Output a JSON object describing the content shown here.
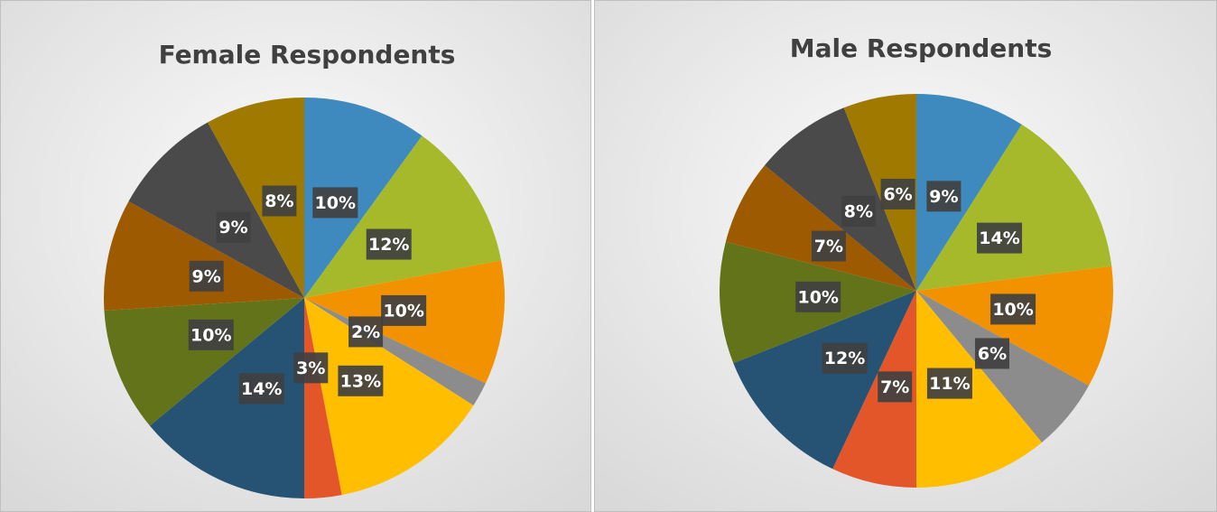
{
  "chart_data": [
    {
      "type": "pie",
      "title": "Female Respondents",
      "values": [
        10,
        12,
        10,
        2,
        13,
        3,
        14,
        10,
        9,
        9,
        8
      ],
      "value_labels": [
        "10%",
        "12%",
        "10%",
        "2%",
        "13%",
        "3%",
        "14%",
        "10%",
        "9%",
        "9%",
        "8%"
      ],
      "colors": [
        "#3e89be",
        "#a5b92a",
        "#f39200",
        "#8c8c8c",
        "#ffbf00",
        "#e2562a",
        "#265273",
        "#62731a",
        "#9e5a00",
        "#4a4a4a",
        "#a07a00"
      ]
    },
    {
      "type": "pie",
      "title": "Male Respondents",
      "values": [
        9,
        14,
        10,
        6,
        11,
        7,
        12,
        10,
        7,
        8,
        6
      ],
      "value_labels": [
        "9%",
        "14%",
        "10%",
        "6%",
        "11%",
        "7%",
        "12%",
        "10%",
        "7%",
        "8%",
        "6%"
      ],
      "colors": [
        "#3e89be",
        "#a5b92a",
        "#f39200",
        "#8c8c8c",
        "#ffbf00",
        "#e2562a",
        "#265273",
        "#62731a",
        "#9e5a00",
        "#4a4a4a",
        "#a07a00"
      ]
    }
  ]
}
